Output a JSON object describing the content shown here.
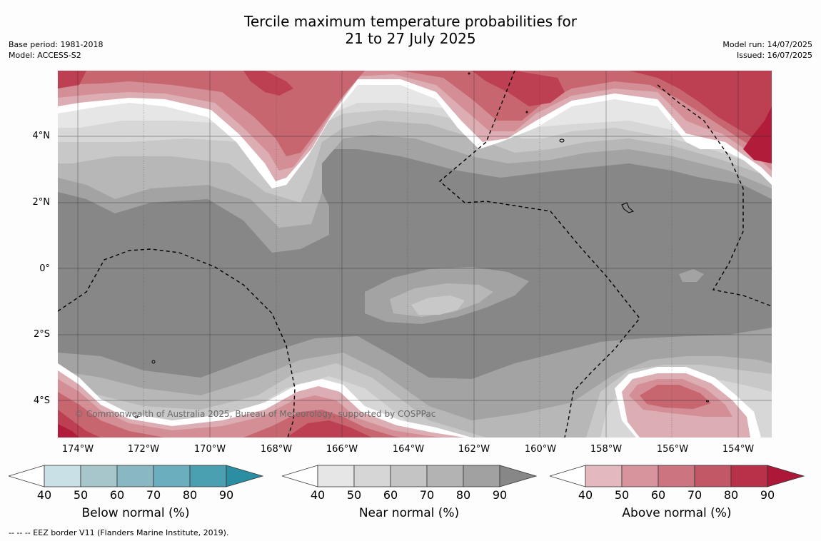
{
  "title": {
    "line1": "Tercile maximum temperature probabilities for",
    "line2": "21 to 27 July 2025"
  },
  "meta_left": {
    "base_period": "Base period: 1981-2018",
    "model": "Model: ACCESS-S2"
  },
  "meta_right": {
    "model_run": "Model run: 14/07/2025",
    "issued": "Issued: 16/07/2025"
  },
  "map": {
    "lat_labels": [
      "4°N",
      "2°N",
      "0°",
      "2°S",
      "4°S"
    ],
    "lon_labels": [
      "174°W",
      "172°W",
      "170°W",
      "168°W",
      "166°W",
      "164°W",
      "162°W",
      "160°W",
      "158°W",
      "156°W",
      "154°W"
    ],
    "copyright": "© Commonwealth of Australia 2025, Bureau of Meteorology, supported by COSPPac",
    "colors": {
      "near_normal_90": "#878787",
      "near_normal_80": "#a3a3a3",
      "near_normal_70": "#b7b7b7",
      "near_normal_60": "#c8c8c8",
      "near_normal_50": "#d7d7d7",
      "above_50": "#dcadb3",
      "above_60": "#d48e96",
      "above_70": "#c86670",
      "above_80": "#bd3f52",
      "above_90": "#b01c3a"
    }
  },
  "colorbars": [
    {
      "label": "Below normal (%)",
      "ticks": [
        "40",
        "50",
        "60",
        "70",
        "80",
        "90"
      ],
      "colors": [
        "#c8e0e6",
        "#a7c6cb",
        "#89b7c2",
        "#6baebd",
        "#4aa0b1",
        "#2b8ea3"
      ]
    },
    {
      "label": "Near normal (%)",
      "ticks": [
        "40",
        "50",
        "60",
        "70",
        "80",
        "90"
      ],
      "colors": [
        "#e6e6e6",
        "#d6d6d6",
        "#c4c4c4",
        "#b3b3b3",
        "#a1a1a1",
        "#878787"
      ]
    },
    {
      "label": "Above normal (%)",
      "ticks": [
        "40",
        "50",
        "60",
        "70",
        "80",
        "90"
      ],
      "colors": [
        "#e3b8be",
        "#d8949d",
        "#cc7480",
        "#c25866",
        "#b93049",
        "#ae1838"
      ]
    }
  ],
  "footer": "--  --  -- EEZ border V11 (Flanders Marine Institute, 2019)."
}
